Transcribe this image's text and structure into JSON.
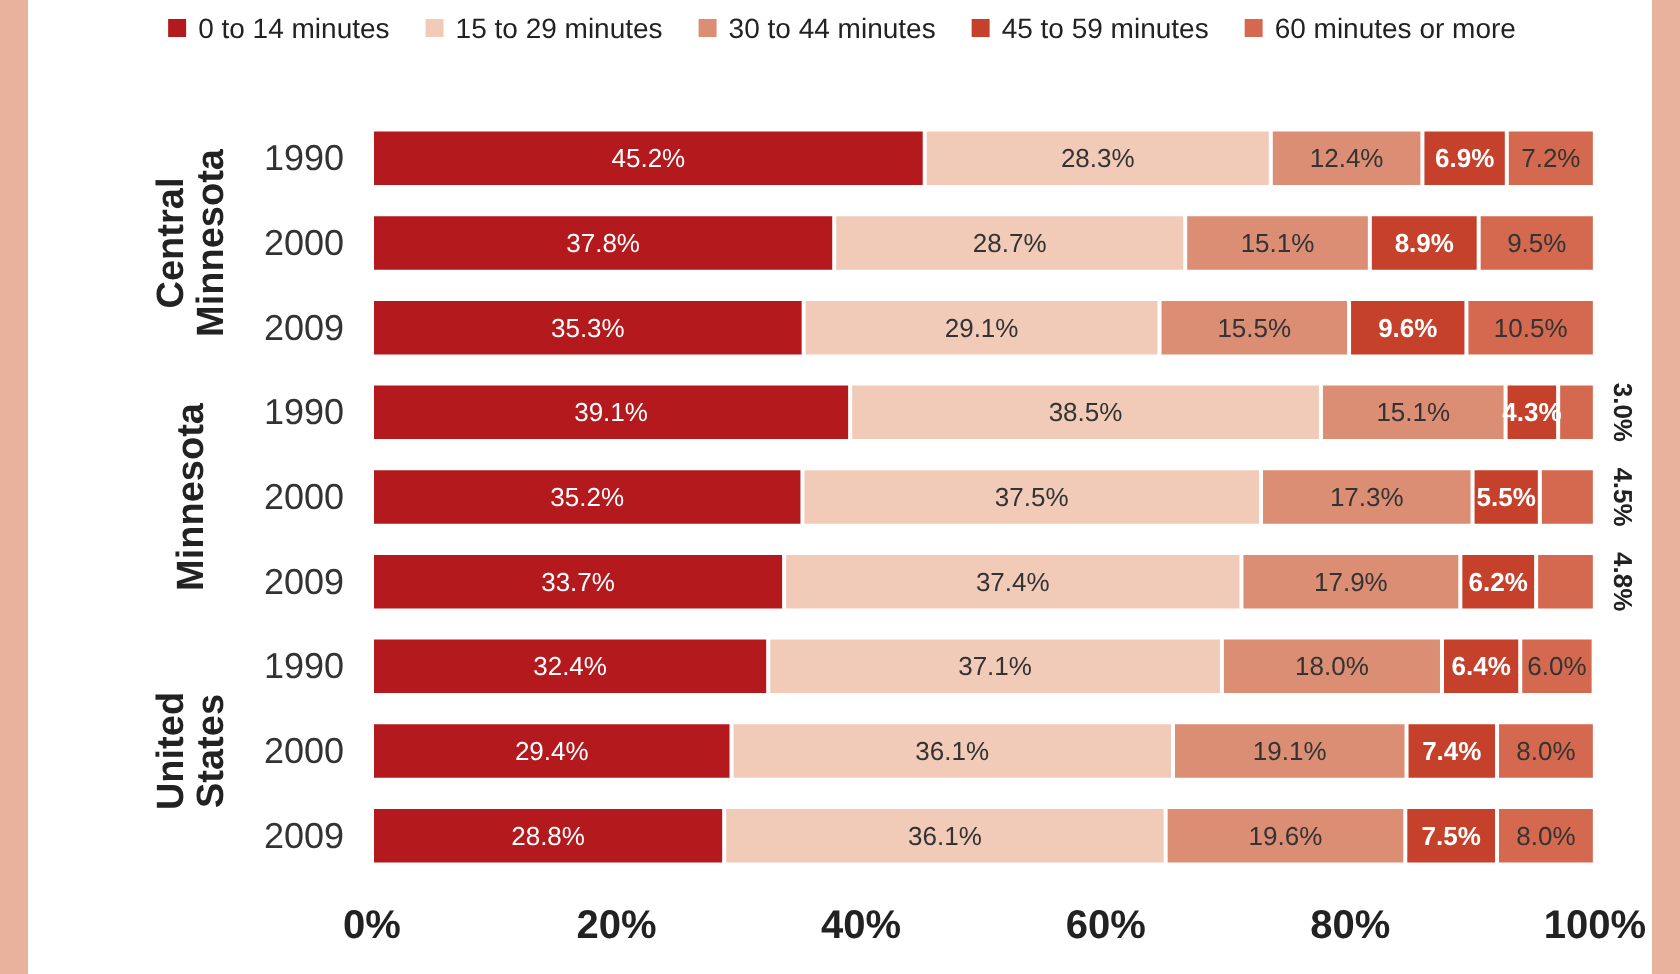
{
  "chart_data": {
    "type": "bar",
    "orientation": "horizontal",
    "stacked": true,
    "categories": [
      "1990",
      "2000",
      "2009",
      "1990",
      "2000",
      "2009",
      "1990",
      "2000",
      "2009"
    ],
    "annotations": [
      "Central Minnesota",
      "Minnesota",
      "United States"
    ],
    "series": [
      {
        "name": "0 to 14 minutes",
        "color": "#b41a1d",
        "values": [
          45.2,
          37.8,
          35.3,
          39.1,
          35.2,
          33.7,
          32.4,
          29.4,
          28.8
        ],
        "value_labels": [
          "45.2%",
          "37.8%",
          "35.3%",
          "39.1%",
          "35.2%",
          "33.7%",
          "32.4%",
          "29.4%",
          "28.8%"
        ]
      },
      {
        "name": "15 to 29 minutes",
        "color": "#f2cbb8",
        "values": [
          28.3,
          28.7,
          29.1,
          38.5,
          37.5,
          37.4,
          37.1,
          36.1,
          36.1
        ],
        "value_labels": [
          "28.3%",
          "28.7%",
          "29.1%",
          "38.5%",
          "37.5%",
          "37.4%",
          "37.1%",
          "36.1%",
          "36.1%"
        ]
      },
      {
        "name": "30 to 44 minutes",
        "color": "#dc8e75",
        "values": [
          12.4,
          15.1,
          15.5,
          15.1,
          17.3,
          17.9,
          18.0,
          19.1,
          19.6
        ],
        "value_labels": [
          "12.4%",
          "15.1%",
          "15.5%",
          "15.1%",
          "17.3%",
          "17.9%",
          "18.0%",
          "19.1%",
          "19.6%"
        ]
      },
      {
        "name": "45 to 59 minutes",
        "color": "#c5412b",
        "values": [
          6.9,
          8.9,
          9.6,
          4.3,
          5.5,
          6.2,
          6.4,
          7.4,
          7.5
        ],
        "value_labels": [
          "6.9%",
          "8.9%",
          "9.6%",
          "4.3%",
          "5.5%",
          "6.2%",
          "6.4%",
          "7.4%",
          "7.5%"
        ]
      },
      {
        "name": "60 minutes or more",
        "color": "#d4694f",
        "values": [
          7.2,
          9.5,
          10.5,
          3.0,
          4.5,
          4.8,
          6.0,
          8.0,
          8.0
        ],
        "value_labels": [
          "7.2%",
          "9.5%",
          "10.5%",
          "3.0%",
          "4.5%",
          "4.8%",
          "6.0%",
          "8.0%",
          "8.0%"
        ]
      }
    ],
    "xlim": [
      0,
      100
    ],
    "xticks": [
      {
        "value": 0,
        "label": "0%"
      },
      {
        "value": 20,
        "label": "20%"
      },
      {
        "value": 40,
        "label": "40%"
      },
      {
        "value": 60,
        "label": "60%"
      },
      {
        "value": 80,
        "label": "80%"
      },
      {
        "value": 100,
        "label": "100%"
      }
    ],
    "grid": false,
    "legend": "top"
  }
}
